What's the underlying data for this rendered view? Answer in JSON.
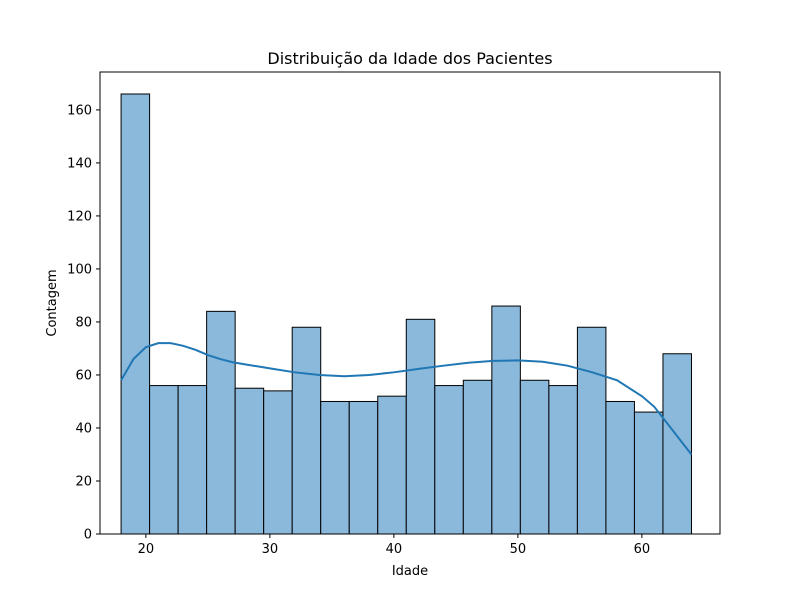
{
  "chart_data": {
    "type": "bar",
    "title": "Distribuição da Idade dos Pacientes",
    "xlabel": "Idade",
    "ylabel": "Contagem",
    "xlim": [
      16.3,
      66.3
    ],
    "ylim": [
      0,
      174.3
    ],
    "x_ticks": [
      20,
      30,
      40,
      50,
      60
    ],
    "y_ticks": [
      0,
      20,
      40,
      60,
      80,
      100,
      120,
      140,
      160
    ],
    "bins": [
      {
        "x0": 18.0,
        "x1": 20.3,
        "count": 166
      },
      {
        "x0": 20.3,
        "x1": 22.6,
        "count": 56
      },
      {
        "x0": 22.6,
        "x1": 24.9,
        "count": 56
      },
      {
        "x0": 24.9,
        "x1": 27.2,
        "count": 84
      },
      {
        "x0": 27.2,
        "x1": 29.5,
        "count": 55
      },
      {
        "x0": 29.5,
        "x1": 31.8,
        "count": 54
      },
      {
        "x0": 31.8,
        "x1": 34.1,
        "count": 78
      },
      {
        "x0": 34.1,
        "x1": 36.4,
        "count": 50
      },
      {
        "x0": 36.4,
        "x1": 38.7,
        "count": 50
      },
      {
        "x0": 38.7,
        "x1": 41.0,
        "count": 52
      },
      {
        "x0": 41.0,
        "x1": 43.3,
        "count": 81
      },
      {
        "x0": 43.3,
        "x1": 45.6,
        "count": 56
      },
      {
        "x0": 45.6,
        "x1": 47.9,
        "count": 58
      },
      {
        "x0": 47.9,
        "x1": 50.2,
        "count": 86
      },
      {
        "x0": 50.2,
        "x1": 52.5,
        "count": 58
      },
      {
        "x0": 52.5,
        "x1": 54.8,
        "count": 56
      },
      {
        "x0": 54.8,
        "x1": 57.1,
        "count": 78
      },
      {
        "x0": 57.1,
        "x1": 59.4,
        "count": 50
      },
      {
        "x0": 59.4,
        "x1": 61.7,
        "count": 46
      },
      {
        "x0": 61.7,
        "x1": 64.0,
        "count": 68
      }
    ],
    "kde": {
      "x": [
        18.0,
        19.0,
        20.0,
        21.0,
        22.0,
        23.0,
        24.0,
        25.0,
        26.0,
        27.0,
        28.0,
        30.0,
        32.0,
        34.0,
        36.0,
        38.0,
        40.0,
        42.0,
        44.0,
        46.0,
        48.0,
        50.0,
        52.0,
        54.0,
        56.0,
        58.0,
        60.0,
        61.0,
        62.0,
        63.0,
        64.0
      ],
      "y": [
        58,
        66,
        70.5,
        72,
        72,
        71,
        69.5,
        67.5,
        66,
        64.8,
        64,
        62.5,
        61,
        60,
        59.5,
        60,
        61,
        62.3,
        63.5,
        64.6,
        65.3,
        65.5,
        65,
        63.5,
        61,
        58,
        52,
        48,
        42,
        36,
        30
      ]
    },
    "bar_color": "#8bb9db",
    "bar_edge_color": "#000000",
    "kde_color": "#1f77b4",
    "grid": false,
    "legend": "none"
  }
}
